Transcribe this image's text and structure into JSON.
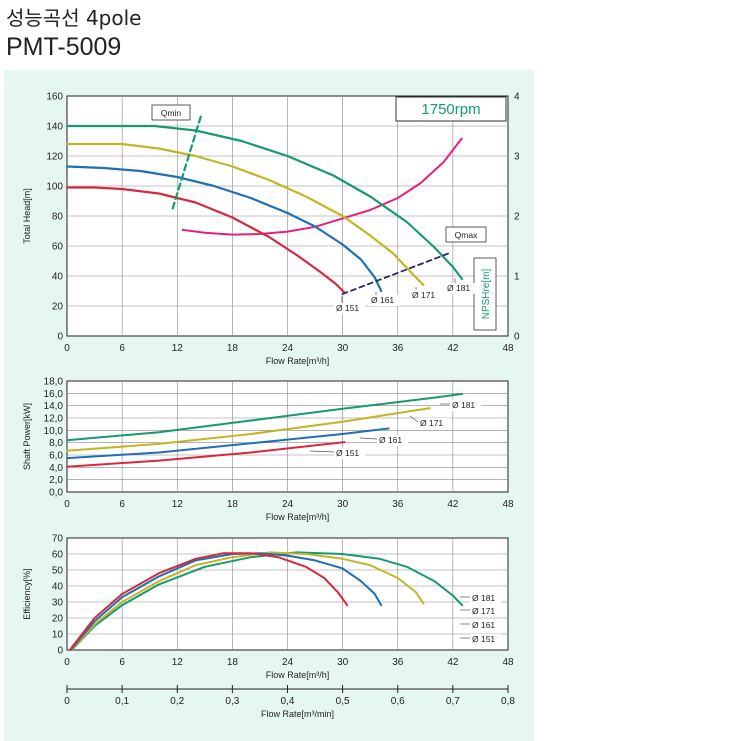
{
  "header": {
    "title": "성능곡선 4pole",
    "model": "PMT-5009"
  },
  "colors": {
    "panel_bg": "#e6f7f3",
    "d181": "#149b6e",
    "d171": "#c4b426",
    "d161": "#1f6fb5",
    "d151": "#d62a3c",
    "npsh": "#e3237a",
    "qmin": "#149b6e",
    "qmax": "#2a2a6a"
  },
  "chart_data": [
    {
      "id": "head",
      "type": "line",
      "speed_label": "1750rpm",
      "qmin_label": "Qmin",
      "qmax_label": "Qmax",
      "xlabel": "Flow Rate[m³/h]",
      "ylabel": "Total Head[m]",
      "y2label": "NPSHre[m]",
      "xlim": [
        0,
        48
      ],
      "ylim": [
        0,
        160
      ],
      "y2lim": [
        0,
        4
      ],
      "xticks": [
        0,
        6,
        12,
        18,
        24,
        30,
        36,
        42,
        48
      ],
      "yticks": [
        0,
        20,
        40,
        60,
        80,
        100,
        120,
        140,
        160
      ],
      "y2ticks": [
        0,
        1,
        2,
        3,
        4
      ],
      "series": [
        {
          "name": "Ø 181",
          "color_key": "d181",
          "x": [
            0,
            5,
            9.5,
            14,
            19,
            24,
            29,
            33,
            37,
            40,
            42,
            43
          ],
          "y": [
            140,
            140,
            140,
            137,
            130,
            120,
            107,
            93,
            76,
            59,
            46,
            38
          ]
        },
        {
          "name": "Ø 171",
          "color_key": "d171",
          "x": [
            0,
            3,
            6,
            10,
            14,
            18,
            22,
            26,
            30,
            33,
            35.5,
            37.5,
            38.8
          ],
          "y": [
            128,
            128,
            128,
            125,
            120,
            113,
            104,
            93,
            80,
            67,
            55,
            42,
            34
          ]
        },
        {
          "name": "Ø 161",
          "color_key": "d161",
          "x": [
            0,
            4,
            8,
            12,
            16,
            20,
            24,
            27,
            30,
            32,
            33.5,
            34.2
          ],
          "y": [
            113,
            112,
            110,
            106,
            100,
            92,
            82,
            73,
            61,
            51,
            39,
            30
          ]
        },
        {
          "name": "Ø 151",
          "color_key": "d151",
          "x": [
            0,
            3,
            6,
            10,
            14,
            18,
            22,
            25,
            27.5,
            29.2,
            30.2
          ],
          "y": [
            99,
            99,
            98,
            95,
            89,
            79,
            66,
            54,
            43,
            35,
            29
          ]
        }
      ],
      "npsh": {
        "x": [
          12.5,
          15,
          18,
          21,
          24,
          27,
          30,
          33,
          36,
          38.5,
          41,
          43
        ],
        "y": [
          1.77,
          1.72,
          1.69,
          1.7,
          1.74,
          1.82,
          1.96,
          2.1,
          2.3,
          2.55,
          2.9,
          3.3
        ]
      },
      "qmin": {
        "x": [
          11.5,
          14.6
        ],
        "y": [
          85,
          147
        ]
      },
      "qmax": {
        "x": [
          30,
          41.5
        ],
        "y": [
          28,
          55
        ]
      }
    },
    {
      "id": "power",
      "type": "line",
      "xlabel": "Flow Rate[m³/h]",
      "ylabel": "Shaft Power[kW]",
      "xlim": [
        0,
        48
      ],
      "ylim": [
        0,
        18
      ],
      "xticks": [
        0,
        6,
        12,
        18,
        24,
        30,
        36,
        42,
        48
      ],
      "yticks": [
        "0,0",
        "2,0",
        "4,0",
        "6,0",
        "8,0",
        "10,0",
        "12,0",
        "14,0",
        "16,0",
        "18,0"
      ],
      "series": [
        {
          "name": "Ø 181",
          "color_key": "d181",
          "x": [
            0,
            10,
            20,
            30,
            40,
            43
          ],
          "y": [
            8.4,
            9.7,
            11.6,
            13.5,
            15.3,
            15.9
          ]
        },
        {
          "name": "Ø 171",
          "color_key": "d171",
          "x": [
            0,
            10,
            20,
            30,
            39.5
          ],
          "y": [
            6.7,
            7.8,
            9.4,
            11.4,
            13.6
          ]
        },
        {
          "name": "Ø 161",
          "color_key": "d161",
          "x": [
            0,
            10,
            20,
            30,
            35
          ],
          "y": [
            5.5,
            6.4,
            7.9,
            9.4,
            10.3
          ]
        },
        {
          "name": "Ø 151",
          "color_key": "d151",
          "x": [
            0,
            10,
            20,
            30.2
          ],
          "y": [
            4.1,
            5.1,
            6.4,
            8.1
          ]
        }
      ]
    },
    {
      "id": "efficiency",
      "type": "line",
      "xlabel": "Flow Rate[m³/h]",
      "x2label": "Flow Rate[m³/min]",
      "ylabel": "Efficiency[%]",
      "xlim": [
        0,
        48
      ],
      "ylim": [
        0,
        70
      ],
      "xticks": [
        0,
        6,
        12,
        18,
        24,
        30,
        36,
        42,
        48
      ],
      "yticks": [
        0,
        10,
        20,
        30,
        40,
        50,
        60,
        70
      ],
      "x2ticks": [
        "0",
        "0,1",
        "0,2",
        "0,3",
        "0,4",
        "0,5",
        "0,6",
        "0,7",
        "0,8"
      ],
      "series": [
        {
          "name": "Ø 181",
          "color_key": "d181",
          "x": [
            0.5,
            3,
            6,
            10,
            15,
            20,
            25,
            30,
            34,
            37,
            40,
            42,
            43
          ],
          "y": [
            0,
            15,
            28,
            41,
            52,
            58,
            61,
            60,
            57,
            52,
            43,
            34,
            28
          ]
        },
        {
          "name": "Ø 171",
          "color_key": "d171",
          "x": [
            0.5,
            3,
            6,
            10,
            14,
            18,
            22,
            26,
            30,
            33,
            36,
            38,
            38.8
          ],
          "y": [
            0,
            16,
            30,
            43,
            53,
            58,
            61,
            60,
            57,
            53,
            45,
            36,
            29
          ]
        },
        {
          "name": "Ø 161",
          "color_key": "d161",
          "x": [
            0.4,
            3,
            6,
            10,
            14,
            18,
            21,
            24,
            27,
            30,
            32,
            33.5,
            34.2
          ],
          "y": [
            0,
            18,
            33,
            46,
            56,
            60,
            60.5,
            59,
            56,
            51,
            43,
            35,
            28
          ]
        },
        {
          "name": "Ø 151",
          "color_key": "d151",
          "x": [
            0.3,
            3,
            6,
            10,
            14,
            17,
            20,
            23,
            26,
            28,
            29.5,
            30.5
          ],
          "y": [
            0,
            20,
            35,
            48,
            57,
            60.5,
            60.5,
            58,
            52,
            45,
            36,
            28
          ]
        }
      ]
    }
  ]
}
